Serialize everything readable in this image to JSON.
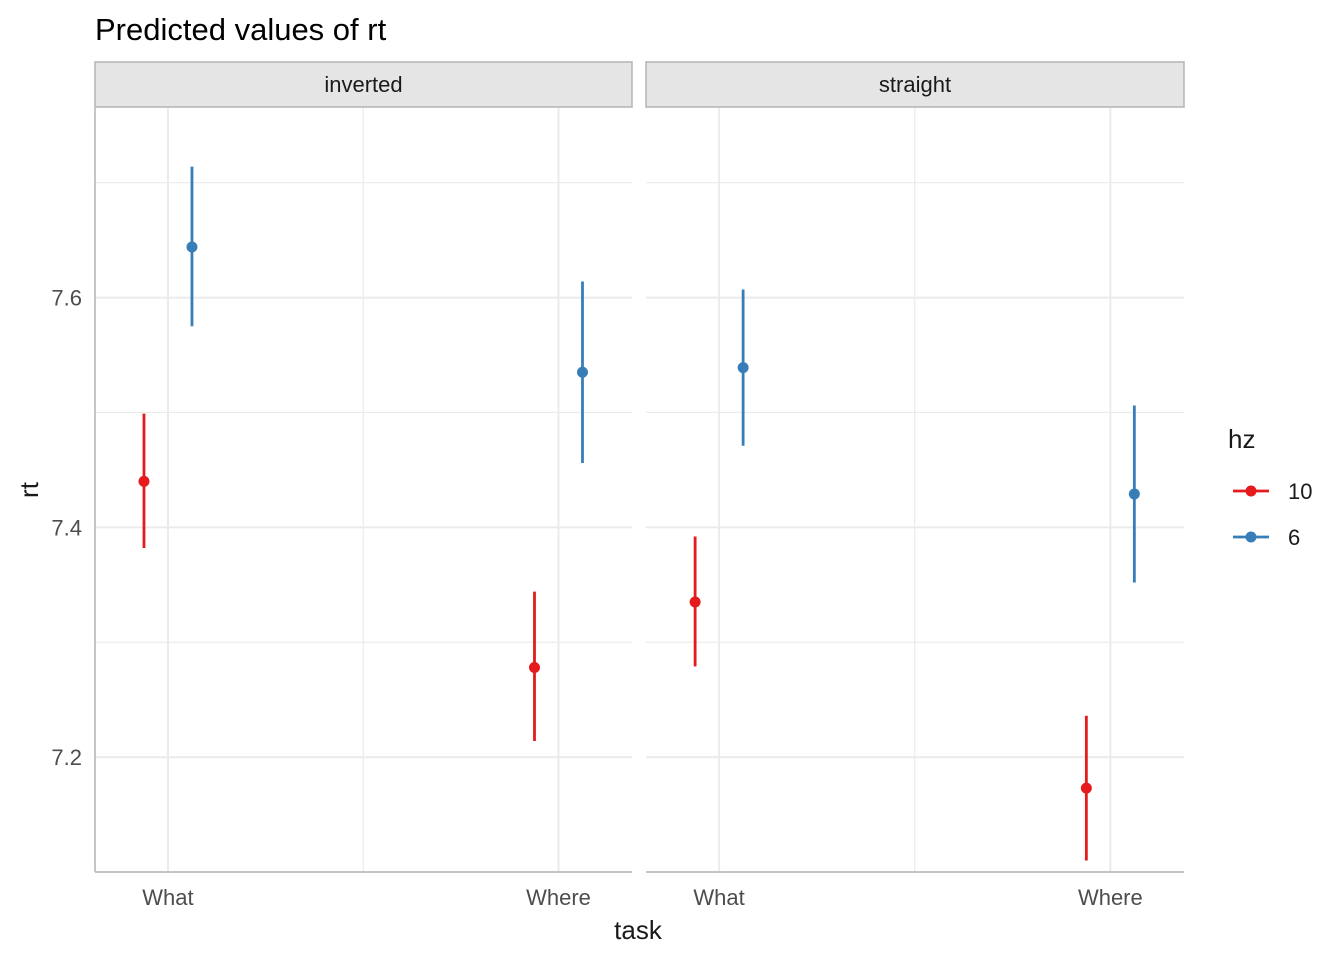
{
  "chart_data": {
    "type": "pointrange",
    "title": "Predicted values of rt",
    "xlabel": "task",
    "ylabel": "rt",
    "categories": [
      "What",
      "Where"
    ],
    "yticks": [
      7.2,
      7.4,
      7.6
    ],
    "ytick_labels": [
      "7.2",
      "7.4",
      "7.6"
    ],
    "ylim": [
      7.1,
      7.765
    ],
    "grid": true,
    "legend": {
      "title": "hz",
      "position": "right"
    },
    "series": [
      {
        "name": "10",
        "color": "#e41a1c"
      },
      {
        "name": "6",
        "color": "#377eb8"
      }
    ],
    "panels": [
      {
        "name": "inverted",
        "series": [
          {
            "name": "10",
            "values": [
              {
                "x": "What",
                "y": 7.44,
                "lo": 7.382,
                "hi": 7.499
              },
              {
                "x": "Where",
                "y": 7.278,
                "lo": 7.214,
                "hi": 7.344
              }
            ]
          },
          {
            "name": "6",
            "values": [
              {
                "x": "What",
                "y": 7.644,
                "lo": 7.575,
                "hi": 7.714
              },
              {
                "x": "Where",
                "y": 7.535,
                "lo": 7.456,
                "hi": 7.614
              }
            ]
          }
        ]
      },
      {
        "name": "straight",
        "series": [
          {
            "name": "10",
            "values": [
              {
                "x": "What",
                "y": 7.335,
                "lo": 7.279,
                "hi": 7.392
              },
              {
                "x": "Where",
                "y": 7.173,
                "lo": 7.11,
                "hi": 7.236
              }
            ]
          },
          {
            "name": "6",
            "values": [
              {
                "x": "What",
                "y": 7.539,
                "lo": 7.471,
                "hi": 7.607
              },
              {
                "x": "Where",
                "y": 7.429,
                "lo": 7.352,
                "hi": 7.506
              }
            ]
          }
        ]
      }
    ]
  }
}
